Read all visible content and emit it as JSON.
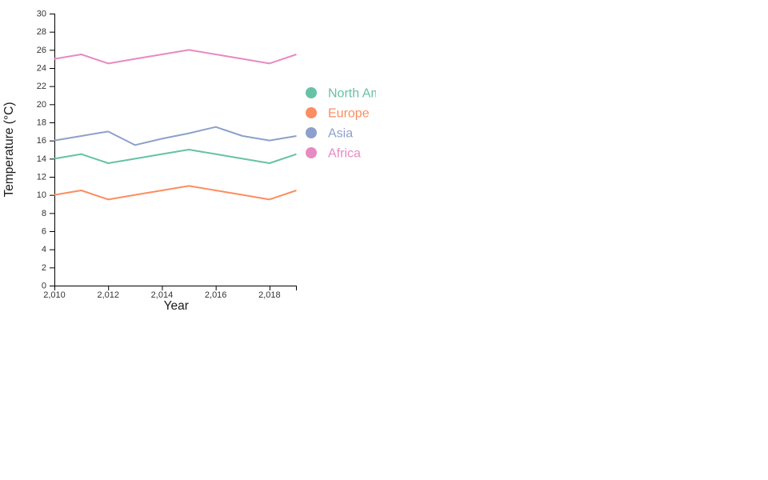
{
  "page": {
    "background": "#ffffff"
  },
  "chart_data": {
    "type": "line",
    "title": "",
    "xlabel": "Year",
    "ylabel": "Temperature (°C)",
    "x": [
      2010,
      2011,
      2012,
      2013,
      2014,
      2015,
      2016,
      2017,
      2018,
      2019
    ],
    "series": [
      {
        "name": "North America",
        "color": "#66c2a5",
        "values": [
          14,
          14.5,
          13.5,
          14,
          14.5,
          15,
          14.5,
          14,
          13.5,
          14.5
        ]
      },
      {
        "name": "Europe",
        "color": "#fc8d62",
        "values": [
          10,
          10.5,
          9.5,
          10,
          10.5,
          11,
          10.5,
          10,
          9.5,
          10.5
        ]
      },
      {
        "name": "Asia",
        "color": "#8da0cb",
        "values": [
          16,
          16.5,
          17,
          15.5,
          16.2,
          16.8,
          17.5,
          16.5,
          16,
          16.5
        ]
      },
      {
        "name": "Africa",
        "color": "#e78ac3",
        "values": [
          25,
          25.5,
          24.5,
          25,
          25.5,
          26,
          25.5,
          25,
          24.5,
          25.5
        ]
      }
    ],
    "xlim": [
      2010,
      2019
    ],
    "ylim": [
      0,
      30
    ],
    "x_ticks": {
      "values": [
        2010,
        2012,
        2014,
        2016,
        2018
      ],
      "labels": [
        "2,010",
        "2,012",
        "2,014",
        "2,016",
        "2,018"
      ]
    },
    "y_ticks": {
      "values": [
        0,
        2,
        4,
        6,
        8,
        10,
        12,
        14,
        16,
        18,
        20,
        22,
        24,
        26,
        28,
        30
      ],
      "labels": [
        "0",
        "2",
        "4",
        "6",
        "8",
        "10",
        "12",
        "14",
        "16",
        "18",
        "20",
        "22",
        "24",
        "26",
        "28",
        "30"
      ]
    },
    "grid": false,
    "legend": {
      "position": "right-of-plot",
      "text_colored_like_series": true
    },
    "axis_color": "#000000",
    "tick_label_color": "#333333",
    "axis_title_color": "#1a1a1a"
  }
}
